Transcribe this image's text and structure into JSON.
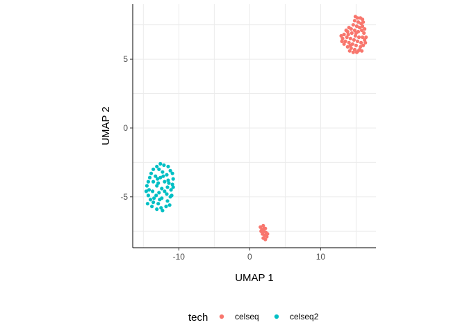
{
  "chart_data": {
    "type": "scatter",
    "xlabel": "UMAP 1",
    "ylabel": "UMAP 2",
    "xlim": [
      -16.5,
      17.8
    ],
    "ylim": [
      -8.7,
      9.0
    ],
    "x_ticks": [
      -10,
      0,
      10
    ],
    "y_ticks": [
      -5,
      0,
      5
    ],
    "grid": true,
    "legend": {
      "title": "tech",
      "position": "bottom",
      "entries": [
        "celseq",
        "celseq2"
      ]
    },
    "colors": {
      "celseq": "#F8766D",
      "celseq2": "#00BFC4"
    },
    "series": [
      {
        "name": "celseq",
        "points": [
          [
            14.9,
            8.1
          ],
          [
            15.2,
            8.0
          ],
          [
            15.6,
            8.0
          ],
          [
            15.9,
            7.9
          ],
          [
            14.8,
            7.8
          ],
          [
            15.3,
            7.7
          ],
          [
            15.7,
            7.6
          ],
          [
            14.6,
            7.5
          ],
          [
            15.1,
            7.4
          ],
          [
            15.5,
            7.3
          ],
          [
            15.9,
            7.4
          ],
          [
            14.3,
            7.2
          ],
          [
            14.8,
            7.1
          ],
          [
            15.3,
            7.0
          ],
          [
            15.8,
            7.1
          ],
          [
            16.1,
            6.9
          ],
          [
            13.8,
            7.0
          ],
          [
            14.4,
            6.9
          ],
          [
            14.9,
            6.7
          ],
          [
            15.4,
            6.6
          ],
          [
            15.9,
            6.6
          ],
          [
            13.3,
            6.8
          ],
          [
            13.7,
            6.6
          ],
          [
            14.2,
            6.5
          ],
          [
            14.7,
            6.4
          ],
          [
            15.2,
            6.3
          ],
          [
            15.7,
            6.2
          ],
          [
            16.2,
            6.4
          ],
          [
            13.1,
            6.5
          ],
          [
            13.5,
            6.3
          ],
          [
            14.0,
            6.2
          ],
          [
            14.5,
            6.1
          ],
          [
            15.0,
            6.0
          ],
          [
            15.6,
            5.9
          ],
          [
            16.0,
            6.0
          ],
          [
            16.3,
            6.2
          ],
          [
            13.3,
            6.1
          ],
          [
            13.8,
            5.9
          ],
          [
            14.3,
            5.8
          ],
          [
            14.8,
            5.7
          ],
          [
            15.3,
            5.6
          ],
          [
            15.8,
            5.6
          ],
          [
            12.9,
            6.7
          ],
          [
            14.1,
            5.6
          ],
          [
            14.6,
            5.5
          ],
          [
            15.1,
            5.5
          ],
          [
            15.5,
            5.7
          ],
          [
            13.0,
            6.3
          ],
          [
            16.4,
            6.6
          ],
          [
            16.2,
            7.2
          ],
          [
            13.6,
            7.1
          ],
          [
            14.0,
            7.3
          ],
          [
            16.0,
            7.7
          ],
          [
            15.0,
            6.9
          ],
          [
            14.2,
            6.0
          ],
          [
            13.9,
            6.8
          ]
        ]
      },
      {
        "name": "celseq",
        "points": [
          [
            1.5,
            -7.2
          ],
          [
            1.9,
            -7.1
          ],
          [
            2.2,
            -7.3
          ],
          [
            1.7,
            -7.4
          ],
          [
            2.0,
            -7.5
          ],
          [
            2.3,
            -7.6
          ],
          [
            1.8,
            -7.7
          ],
          [
            2.1,
            -7.8
          ],
          [
            2.4,
            -7.9
          ],
          [
            1.9,
            -8.0
          ],
          [
            2.2,
            -8.1
          ],
          [
            2.5,
            -7.7
          ],
          [
            1.6,
            -7.5
          ],
          [
            2.0,
            -7.3
          ]
        ]
      },
      {
        "name": "celseq2",
        "points": [
          [
            -12.6,
            -2.6
          ],
          [
            -12.1,
            -2.7
          ],
          [
            -11.5,
            -2.8
          ],
          [
            -13.1,
            -2.8
          ],
          [
            -13.6,
            -3.0
          ],
          [
            -12.8,
            -3.0
          ],
          [
            -11.2,
            -3.1
          ],
          [
            -10.9,
            -3.3
          ],
          [
            -13.9,
            -3.3
          ],
          [
            -12.3,
            -3.2
          ],
          [
            -11.7,
            -3.4
          ],
          [
            -14.1,
            -3.6
          ],
          [
            -13.3,
            -3.5
          ],
          [
            -10.8,
            -3.7
          ],
          [
            -12.6,
            -3.6
          ],
          [
            -11.5,
            -3.8
          ],
          [
            -14.3,
            -3.9
          ],
          [
            -13.6,
            -3.9
          ],
          [
            -12.0,
            -3.9
          ],
          [
            -10.9,
            -4.1
          ],
          [
            -14.5,
            -4.2
          ],
          [
            -13.1,
            -4.2
          ],
          [
            -11.6,
            -4.3
          ],
          [
            -14.2,
            -4.5
          ],
          [
            -12.4,
            -4.4
          ],
          [
            -11.1,
            -4.5
          ],
          [
            -13.7,
            -4.6
          ],
          [
            -12.8,
            -4.7
          ],
          [
            -11.7,
            -4.8
          ],
          [
            -14.3,
            -4.9
          ],
          [
            -13.2,
            -4.9
          ],
          [
            -11.2,
            -5.0
          ],
          [
            -14.0,
            -5.2
          ],
          [
            -12.4,
            -5.1
          ],
          [
            -11.6,
            -5.3
          ],
          [
            -13.6,
            -5.4
          ],
          [
            -12.9,
            -5.5
          ],
          [
            -11.3,
            -5.6
          ],
          [
            -13.8,
            -5.7
          ],
          [
            -12.5,
            -5.8
          ],
          [
            -11.8,
            -5.7
          ],
          [
            -13.1,
            -5.9
          ],
          [
            -12.3,
            -6.0
          ],
          [
            -14.4,
            -5.5
          ],
          [
            -11.0,
            -4.9
          ],
          [
            -12.0,
            -4.6
          ],
          [
            -13.0,
            -3.7
          ],
          [
            -12.9,
            -4.0
          ],
          [
            -11.4,
            -4.0
          ],
          [
            -13.5,
            -5.1
          ],
          [
            -12.7,
            -5.2
          ],
          [
            -14.6,
            -4.6
          ],
          [
            -10.8,
            -4.3
          ],
          [
            -12.2,
            -3.5
          ]
        ]
      }
    ]
  }
}
